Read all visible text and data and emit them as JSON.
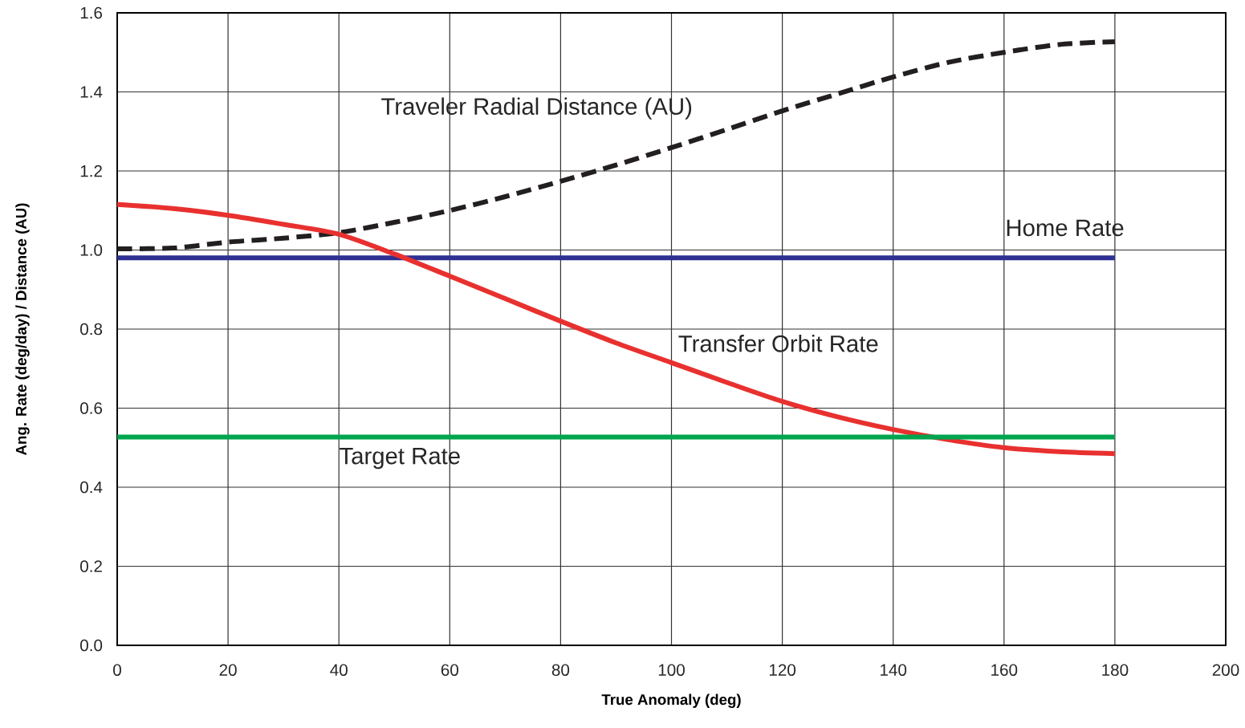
{
  "chart_data": {
    "type": "line",
    "xlabel": "True Anomaly (deg)",
    "ylabel": "Ang. Rate (deg/day) / Distance (AU)",
    "x": [
      0,
      10,
      20,
      30,
      40,
      50,
      60,
      70,
      80,
      90,
      100,
      110,
      120,
      130,
      140,
      150,
      160,
      170,
      180
    ],
    "series": [
      {
        "name": "Traveler Radial Distance (AU)",
        "color": "#231f20",
        "line_style": "dashed",
        "values": [
          1.003,
          1.005,
          1.02,
          1.03,
          1.044,
          1.07,
          1.1,
          1.135,
          1.174,
          1.215,
          1.259,
          1.305,
          1.352,
          1.395,
          1.438,
          1.475,
          1.5,
          1.52,
          1.527
        ]
      },
      {
        "name": "Home Rate",
        "color": "#2e3192",
        "line_style": "solid",
        "values": [
          0.98,
          0.98,
          0.98,
          0.98,
          0.98,
          0.98,
          0.98,
          0.98,
          0.98,
          0.98,
          0.98,
          0.98,
          0.98,
          0.98,
          0.98,
          0.98,
          0.98,
          0.98,
          0.98
        ]
      },
      {
        "name": "Transfer Orbit Rate",
        "color": "#e8312f",
        "line_style": "solid",
        "values": [
          1.115,
          1.105,
          1.088,
          1.065,
          1.04,
          0.99,
          0.934,
          0.877,
          0.82,
          0.765,
          0.715,
          0.665,
          0.617,
          0.578,
          0.546,
          0.52,
          0.5,
          0.49,
          0.485
        ]
      },
      {
        "name": "Target Rate",
        "color": "#00a64f",
        "line_style": "solid",
        "values": [
          0.527,
          0.527,
          0.527,
          0.527,
          0.527,
          0.527,
          0.527,
          0.527,
          0.527,
          0.527,
          0.527,
          0.527,
          0.527,
          0.527,
          0.527,
          0.527,
          0.527,
          0.527,
          0.527
        ]
      }
    ],
    "xlim": [
      0,
      200
    ],
    "xticks": [
      0,
      20,
      40,
      60,
      80,
      100,
      120,
      140,
      160,
      180,
      200
    ],
    "ylim": [
      0,
      1.6
    ],
    "yticks": [
      {
        "value": 0,
        "label": "0.0"
      },
      {
        "value": 0.2,
        "label": "0.2"
      },
      {
        "value": 0.4,
        "label": "0.4"
      },
      {
        "value": 0.6,
        "label": "0.6"
      },
      {
        "value": 0.8,
        "label": "0.8"
      },
      {
        "value": 1.0,
        "label": "1.0"
      },
      {
        "value": 1.2,
        "label": "1.2"
      },
      {
        "value": 1.4,
        "label": "1.4"
      },
      {
        "value": 1.6,
        "label": "1.6"
      }
    ],
    "grid": true,
    "marker": "none"
  }
}
